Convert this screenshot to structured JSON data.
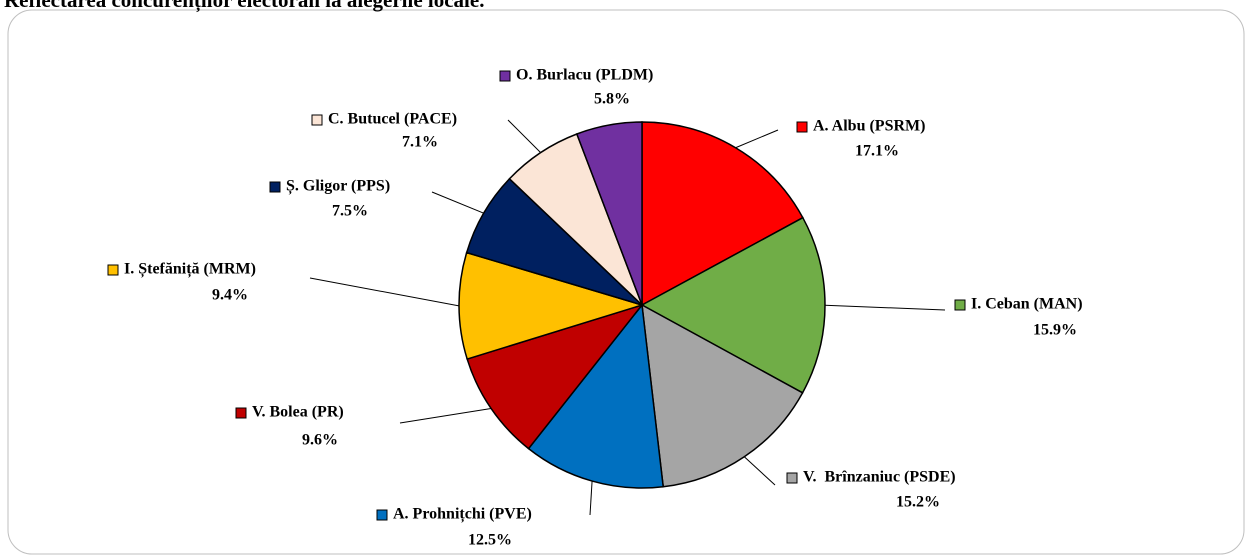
{
  "chart_data": {
    "type": "pie",
    "title": "Reflectarea concurenților electorali la alegerile locale.",
    "categories": [
      "A. Albu (PSRM)",
      "I. Ceban (MAN)",
      "V.  Brînzaniuc (PSDE)",
      "A. Prohnițchi (PVE)",
      "V. Bolea (PR)",
      "I. Ștefăniță (MRM)",
      "Ș. Gligor (PPS)",
      "C. Butucel (PACE)",
      "O. Burlacu (PLDM)"
    ],
    "values": [
      17.1,
      15.9,
      15.2,
      12.5,
      9.6,
      9.4,
      7.5,
      7.1,
      5.8
    ],
    "value_labels": [
      "17.1%",
      "15.9%",
      "15.2%",
      "12.5%",
      "9.6%",
      "9.4%",
      "7.5%",
      "7.1%",
      "5.8%"
    ],
    "colors": [
      "#ff0000",
      "#70ad47",
      "#a5a5a5",
      "#0070c0",
      "#c00000",
      "#ffc000",
      "#002060",
      "#fbe5d6",
      "#7030a0"
    ]
  }
}
